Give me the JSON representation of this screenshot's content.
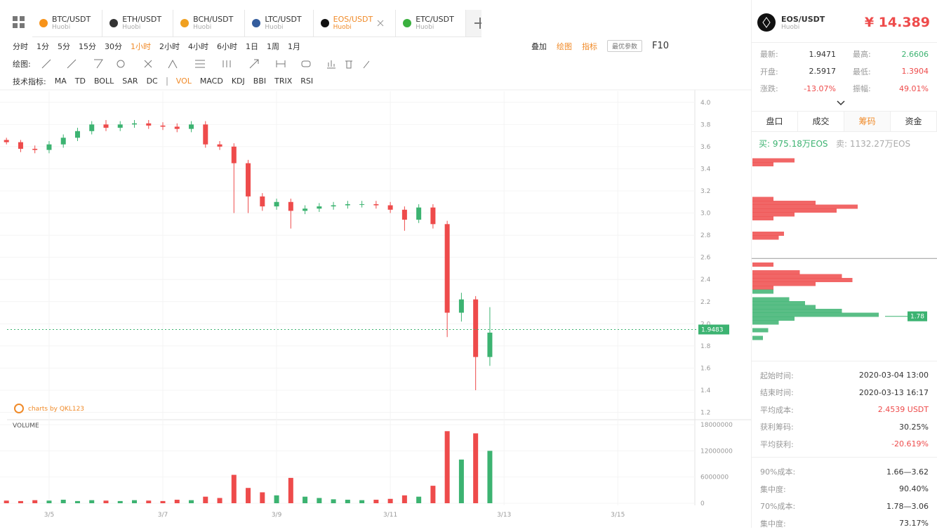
{
  "tabs": [
    {
      "symbol": "BTC/USDT",
      "exchange": "Huobi",
      "color": "#f7931a"
    },
    {
      "symbol": "ETH/USDT",
      "exchange": "Huobi",
      "color": "#333333"
    },
    {
      "symbol": "BCH/USDT",
      "exchange": "Huobi",
      "color": "#f0a020"
    },
    {
      "symbol": "LTC/USDT",
      "exchange": "Huobi",
      "color": "#345d9d"
    },
    {
      "symbol": "EOS/USDT",
      "exchange": "Huobi",
      "color": "#111111"
    },
    {
      "symbol": "ETC/USDT",
      "exchange": "Huobi",
      "color": "#3ab03e"
    }
  ],
  "active_tab": 4,
  "intervals": [
    "分时",
    "1分",
    "5分",
    "15分",
    "30分",
    "1小时",
    "2小时",
    "4小时",
    "6小时",
    "1日",
    "1周",
    "1月"
  ],
  "active_interval": 5,
  "actions": [
    "叠加",
    "绘图",
    "指标"
  ],
  "params_button": "最优参数",
  "f10": "F10",
  "draw_label": "绘图:",
  "indicator_label": "技术指标:",
  "indicators": [
    "MA",
    "TD",
    "BOLL",
    "SAR",
    "DC",
    "VOL",
    "MACD",
    "KDJ",
    "BBI",
    "TRIX",
    "RSI"
  ],
  "active_indicator": 5,
  "chart_data": {
    "type": "candlestick",
    "watermark": "charts by QKL123",
    "volume_label": "VOLUME",
    "up_color": "#3cb371",
    "down_color": "#ee4b4b",
    "xlim": [
      4.26,
      16.33
    ],
    "xticks": [
      {
        "value": 5,
        "label": "3/5"
      },
      {
        "value": 7,
        "label": "3/7"
      },
      {
        "value": 9,
        "label": "3/9"
      },
      {
        "value": 11,
        "label": "3/11"
      },
      {
        "value": 13,
        "label": "3/13"
      },
      {
        "value": 15,
        "label": "3/15"
      }
    ],
    "ylim": [
      1.14,
      4.1
    ],
    "yticks": [
      1.2,
      1.4,
      1.6,
      1.8,
      {
        "value": 2,
        "label": "2.0"
      },
      2.2,
      2.4,
      2.6,
      2.8,
      {
        "value": 3,
        "label": "3.0"
      },
      3.2,
      3.4,
      3.6,
      3.8,
      {
        "value": 4,
        "label": "4.0"
      }
    ],
    "vlim": [
      0,
      18000000
    ],
    "vticks": [
      0,
      6000000,
      12000000,
      18000000
    ],
    "grid": true,
    "last_price": {
      "value": 1.9483,
      "label": "1.9483"
    },
    "candles": {
      "x": [
        4.25,
        4.5,
        4.75,
        5,
        5.25,
        5.5,
        5.75,
        6,
        6.25,
        6.5,
        6.75,
        7,
        7.25,
        7.5,
        7.75,
        8,
        8.25,
        8.5,
        8.75,
        9,
        9.25,
        9.5,
        9.75,
        10,
        10.25,
        10.5,
        10.75,
        11,
        11.25,
        11.5,
        11.75,
        12,
        12.25,
        12.5,
        12.75
      ],
      "open": [
        3.66,
        3.64,
        3.58,
        3.57,
        3.62,
        3.68,
        3.74,
        3.8,
        3.77,
        3.8,
        3.81,
        3.79,
        3.78,
        3.76,
        3.8,
        3.62,
        3.6,
        3.45,
        3.15,
        3.06,
        3.1,
        3.02,
        3.04,
        3.06,
        3.07,
        3.08,
        3.08,
        3.07,
        3.03,
        2.94,
        3.05,
        2.9,
        2.1,
        2.22,
        1.7
      ],
      "close": [
        3.64,
        3.58,
        3.57,
        3.62,
        3.68,
        3.74,
        3.8,
        3.77,
        3.8,
        3.81,
        3.79,
        3.78,
        3.76,
        3.8,
        3.62,
        3.6,
        3.45,
        3.15,
        3.06,
        3.1,
        3.02,
        3.04,
        3.06,
        3.07,
        3.08,
        3.08,
        3.07,
        3.03,
        2.94,
        3.05,
        2.9,
        2.1,
        2.22,
        1.7,
        1.92
      ],
      "high": [
        3.68,
        3.66,
        3.61,
        3.65,
        3.71,
        3.77,
        3.83,
        3.84,
        3.83,
        3.84,
        3.84,
        3.82,
        3.81,
        3.83,
        3.83,
        3.65,
        3.63,
        3.48,
        3.18,
        3.13,
        3.13,
        3.07,
        3.09,
        3.1,
        3.11,
        3.11,
        3.11,
        3.1,
        3.06,
        3.08,
        3.08,
        2.93,
        2.28,
        2.25,
        2.15
      ],
      "low": [
        3.62,
        3.55,
        3.54,
        3.54,
        3.59,
        3.65,
        3.71,
        3.74,
        3.74,
        3.77,
        3.76,
        3.75,
        3.73,
        3.73,
        3.59,
        3.57,
        3.0,
        3.0,
        3.02,
        3.03,
        2.86,
        2.99,
        3.01,
        3.03,
        3.04,
        3.05,
        3.04,
        3.0,
        2.84,
        2.91,
        2.86,
        1.88,
        2.02,
        1.4,
        1.62
      ]
    },
    "volume": [
      600000,
      500000,
      700000,
      600000,
      800000,
      500000,
      700000,
      600000,
      500000,
      700000,
      600000,
      500000,
      800000,
      700000,
      1500000,
      1200000,
      6500000,
      3500000,
      2500000,
      1800000,
      5800000,
      1500000,
      1200000,
      900000,
      800000,
      700000,
      800000,
      1000000,
      1800000,
      1500000,
      4000000,
      16500000,
      10000000,
      16000000,
      12000000
    ]
  },
  "panel": {
    "symbol": "EOS/USDT",
    "exchange": "Huobi",
    "price": "¥ 14.389",
    "stats": [
      {
        "label": "最新:",
        "value": "1.9471",
        "color": "#333333"
      },
      {
        "label": "最高:",
        "value": "2.6606",
        "color": "#3cb371"
      },
      {
        "label": "开盘:",
        "value": "2.5917",
        "color": "#333333"
      },
      {
        "label": "最低:",
        "value": "1.3904",
        "color": "#ee4b4b"
      },
      {
        "label": "涨跌:",
        "value": "-13.07%",
        "color": "#ee4b4b"
      },
      {
        "label": "振幅:",
        "value": "49.01%",
        "color": "#ee4b4b"
      }
    ],
    "tabs": [
      "盘口",
      "成交",
      "筹码",
      "资金"
    ],
    "active_tab": 2,
    "buy_label": "买:",
    "buy": "975.18万EOS",
    "sell_label": "卖:",
    "sell": "1132.27万EOS",
    "distribution": {
      "ylim": [
        1.25,
        3.85
      ],
      "current_line": 2.53,
      "marker": {
        "value": 1.78,
        "label": "1.78"
      },
      "bars": [
        {
          "price": 3.8,
          "amount": 40,
          "color": "#ee4b4b"
        },
        {
          "price": 3.75,
          "amount": 20,
          "color": "#ee4b4b"
        },
        {
          "price": 3.3,
          "amount": 20,
          "color": "#ee4b4b"
        },
        {
          "price": 3.25,
          "amount": 60,
          "color": "#ee4b4b"
        },
        {
          "price": 3.2,
          "amount": 100,
          "color": "#ee4b4b"
        },
        {
          "price": 3.15,
          "amount": 80,
          "color": "#ee4b4b"
        },
        {
          "price": 3.1,
          "amount": 40,
          "color": "#ee4b4b"
        },
        {
          "price": 3.05,
          "amount": 20,
          "color": "#ee4b4b"
        },
        {
          "price": 2.85,
          "amount": 30,
          "color": "#ee4b4b"
        },
        {
          "price": 2.8,
          "amount": 25,
          "color": "#ee4b4b"
        },
        {
          "price": 2.45,
          "amount": 20,
          "color": "#ee4b4b"
        },
        {
          "price": 2.35,
          "amount": 45,
          "color": "#ee4b4b"
        },
        {
          "price": 2.3,
          "amount": 85,
          "color": "#ee4b4b"
        },
        {
          "price": 2.25,
          "amount": 95,
          "color": "#ee4b4b"
        },
        {
          "price": 2.2,
          "amount": 60,
          "color": "#ee4b4b"
        },
        {
          "price": 2.15,
          "amount": 20,
          "color": "#ee4b4b"
        },
        {
          "price": 2.1,
          "amount": 20,
          "color": "#3cb371"
        },
        {
          "price": 2.0,
          "amount": 35,
          "color": "#3cb371"
        },
        {
          "price": 1.95,
          "amount": 50,
          "color": "#3cb371"
        },
        {
          "price": 1.9,
          "amount": 60,
          "color": "#3cb371"
        },
        {
          "price": 1.85,
          "amount": 85,
          "color": "#3cb371"
        },
        {
          "price": 1.8,
          "amount": 120,
          "color": "#3cb371"
        },
        {
          "price": 1.75,
          "amount": 40,
          "color": "#3cb371"
        },
        {
          "price": 1.7,
          "amount": 25,
          "color": "#3cb371"
        },
        {
          "price": 1.6,
          "amount": 15,
          "color": "#3cb371"
        },
        {
          "price": 1.5,
          "amount": 10,
          "color": "#3cb371"
        }
      ]
    },
    "summary": [
      {
        "label": "起始时间:",
        "value": "2020-03-04 13:00",
        "color": "#333333"
      },
      {
        "label": "结束时间:",
        "value": "2020-03-13 16:17",
        "color": "#333333"
      },
      {
        "label": "平均成本:",
        "value": "2.4539 USDT",
        "color": "#ee4b4b"
      },
      {
        "label": "获利筹码:",
        "value": "30.25%",
        "color": "#333333"
      },
      {
        "label": "平均获利:",
        "value": "-20.619%",
        "color": "#ee4b4b"
      }
    ],
    "concentration": [
      {
        "label": "90%成本:",
        "value": "1.66—3.62",
        "color": "#333333"
      },
      {
        "label": "集中度:",
        "value": "90.40%",
        "color": "#333333"
      },
      {
        "label": "70%成本:",
        "value": "1.78—3.06",
        "color": "#333333"
      },
      {
        "label": "集中度:",
        "value": "73.17%",
        "color": "#333333"
      }
    ]
  }
}
